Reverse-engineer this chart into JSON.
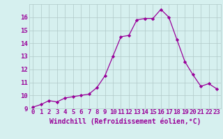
{
  "x": [
    0,
    1,
    2,
    3,
    4,
    5,
    6,
    7,
    8,
    9,
    10,
    11,
    12,
    13,
    14,
    15,
    16,
    17,
    18,
    19,
    20,
    21,
    22,
    23
  ],
  "y": [
    9.1,
    9.3,
    9.6,
    9.5,
    9.8,
    9.9,
    10.0,
    10.1,
    10.6,
    11.5,
    13.0,
    14.5,
    14.6,
    15.8,
    15.9,
    15.9,
    16.6,
    16.0,
    14.3,
    12.6,
    11.6,
    10.7,
    10.9,
    10.5
  ],
  "line_color": "#990099",
  "marker": "D",
  "marker_size": 2.2,
  "bg_color": "#d6f0ef",
  "grid_color": "#b0c8c8",
  "xlabel": "Windchill (Refroidissement éolien,°C)",
  "xlabel_color": "#990099",
  "tick_color": "#990099",
  "ylim": [
    9,
    17
  ],
  "xlim": [
    -0.5,
    23.5
  ],
  "yticks": [
    9,
    10,
    11,
    12,
    13,
    14,
    15,
    16
  ],
  "xticks": [
    0,
    1,
    2,
    3,
    4,
    5,
    6,
    7,
    8,
    9,
    10,
    11,
    12,
    13,
    14,
    15,
    16,
    17,
    18,
    19,
    20,
    21,
    22,
    23
  ],
  "font_size_label": 7,
  "font_size_tick": 6.5
}
